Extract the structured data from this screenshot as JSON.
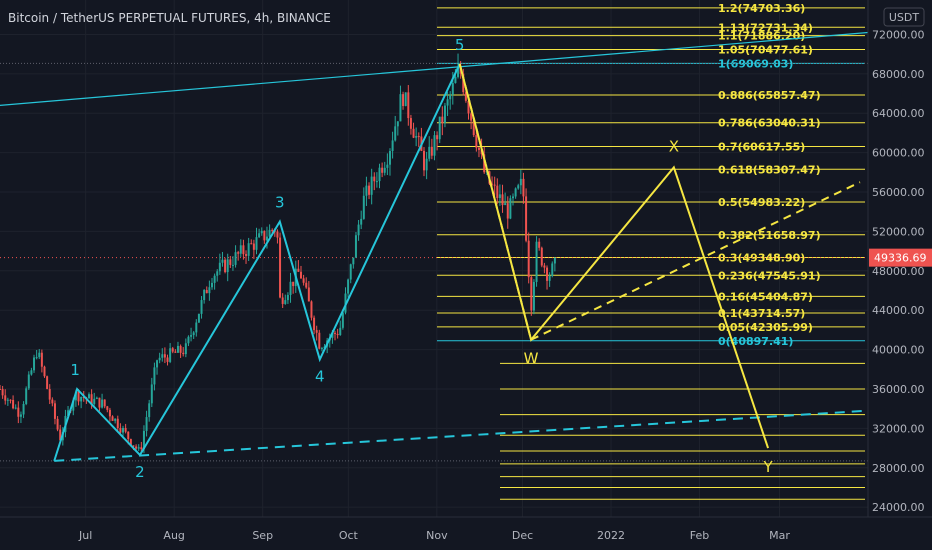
{
  "header": {
    "title": "Bitcoin / TetherUS PERPETUAL FUTURES, 4h, BINANCE",
    "currency": "USDT"
  },
  "price_axis": {
    "ticks": [
      "72000.00",
      "68000.00",
      "64000.00",
      "60000.00",
      "56000.00",
      "52000.00",
      "48000.00",
      "44000.00",
      "40000.00",
      "36000.00",
      "32000.00",
      "28000.00",
      "24000.00"
    ],
    "tick_values": [
      72000,
      68000,
      64000,
      60000,
      56000,
      52000,
      48000,
      44000,
      40000,
      36000,
      32000,
      28000,
      24000
    ],
    "current_price": "49336.69",
    "current_value": 49336.69
  },
  "time_axis": {
    "labels": [
      "Jul",
      "Aug",
      "Sep",
      "Oct",
      "Nov",
      "Dec",
      "2022",
      "Feb",
      "Mar"
    ],
    "dates": [
      "2021-07-01",
      "2021-08-01",
      "2021-09-01",
      "2021-10-01",
      "2021-11-01",
      "2021-12-01",
      "2022-01-01",
      "2022-02-01",
      "2022-03-01"
    ]
  },
  "chart_data": {
    "type": "candlestick",
    "title": "Bitcoin / TetherUS PERPETUAL FUTURES, 4h, BINANCE",
    "ylim": [
      23000,
      75500
    ],
    "xlim": [
      "2021-06-01",
      "2022-04-01"
    ],
    "price_path": [
      [
        "2021-06-01",
        36000
      ],
      [
        "2021-06-08",
        33500
      ],
      [
        "2021-06-14",
        40000
      ],
      [
        "2021-06-22",
        31000
      ],
      [
        "2021-06-27",
        35500
      ],
      [
        "2021-07-07",
        34500
      ],
      [
        "2021-07-20",
        29500
      ],
      [
        "2021-07-26",
        39000
      ],
      [
        "2021-08-05",
        40000
      ],
      [
        "2021-08-14",
        47500
      ],
      [
        "2021-08-23",
        49500
      ],
      [
        "2021-09-06",
        52500
      ],
      [
        "2021-09-07",
        45000
      ],
      [
        "2021-09-14",
        48000
      ],
      [
        "2021-09-21",
        40500
      ],
      [
        "2021-09-28",
        42000
      ],
      [
        "2021-10-06",
        55000
      ],
      [
        "2021-10-15",
        60000
      ],
      [
        "2021-10-20",
        66000
      ],
      [
        "2021-10-28",
        58500
      ],
      [
        "2021-11-09",
        68500
      ],
      [
        "2021-11-18",
        57500
      ],
      [
        "2021-11-26",
        54000
      ],
      [
        "2021-12-01",
        57000
      ],
      [
        "2021-12-04",
        44500
      ],
      [
        "2021-12-06",
        50500
      ],
      [
        "2021-12-10",
        47500
      ],
      [
        "2021-12-13",
        48800
      ]
    ],
    "fib_levels": [
      {
        "label": "1.2(74703.36)",
        "value": 74703.36
      },
      {
        "label": "1.13(72731.34)",
        "value": 72731.34
      },
      {
        "label": "1.1(71886.20)",
        "value": 71886.2
      },
      {
        "label": "1.05(70477.61)",
        "value": 70477.61
      },
      {
        "label": "1(69069.03)",
        "value": 69069.03
      },
      {
        "label": "0.886(65857.47)",
        "value": 65857.47
      },
      {
        "label": "0.786(63040.31)",
        "value": 63040.31
      },
      {
        "label": "0.7(60617.55)",
        "value": 60617.55
      },
      {
        "label": "0.618(58307.47)",
        "value": 58307.47
      },
      {
        "label": "0.5(54983.22)",
        "value": 54983.22
      },
      {
        "label": "0.382(51658.97)",
        "value": 51658.97
      },
      {
        "label": "0.3(49348.90)",
        "value": 49348.9
      },
      {
        "label": "0.236(47545.91)",
        "value": 47545.91
      },
      {
        "label": "0.16(45404.87)",
        "value": 45404.87
      },
      {
        "label": "0.1(43714.57)",
        "value": 43714.57
      },
      {
        "label": "0.05(42305.99)",
        "value": 42305.99
      },
      {
        "label": "0(40897.41)",
        "value": 40897.41
      }
    ],
    "extra_fib_levels": [
      38600,
      36000,
      33400,
      31300,
      29700,
      28400,
      27100,
      26000,
      24800
    ],
    "elliott_waves": [
      {
        "label": "1",
        "date": "2021-06-28",
        "value": 36000
      },
      {
        "label": "2",
        "date": "2021-07-20",
        "value": 29300
      },
      {
        "label": "3",
        "date": "2021-09-07",
        "value": 53000
      },
      {
        "label": "4",
        "date": "2021-09-21",
        "value": 39000
      },
      {
        "label": "5",
        "date": "2021-11-09",
        "value": 69000
      }
    ],
    "wxy_points": [
      {
        "label": "W",
        "date": "2021-12-04",
        "value": 41000
      },
      {
        "label": "X",
        "date": "2022-01-23",
        "value": 58500
      },
      {
        "label": "Y",
        "date": "2022-02-25",
        "value": 30000
      }
    ],
    "colors": {
      "wave": "#26c6da",
      "wxy": "#f5e642",
      "fib": "#f5e642",
      "up": "#26a69a",
      "down": "#ef5350",
      "background": "#131722"
    }
  }
}
